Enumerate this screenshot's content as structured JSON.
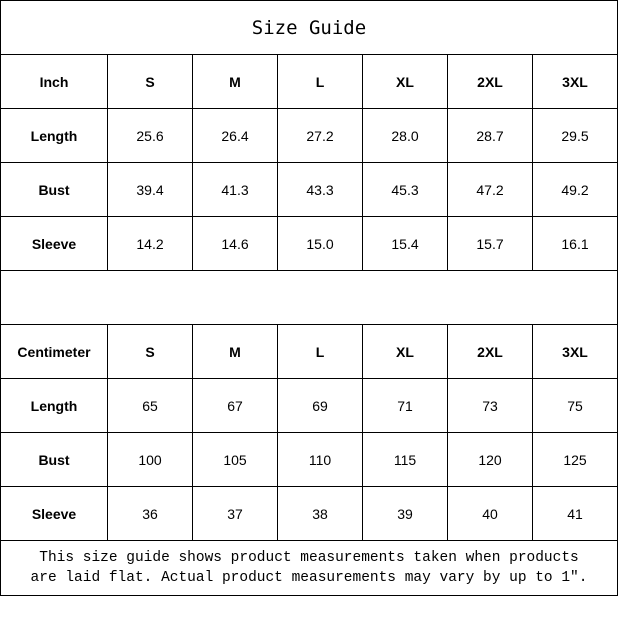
{
  "title": "Size Guide",
  "inch_table": {
    "header": [
      "Inch",
      "S",
      "M",
      "L",
      "XL",
      "2XL",
      "3XL"
    ],
    "rows": [
      {
        "label": "Length",
        "values": [
          "25.6",
          "26.4",
          "27.2",
          "28.0",
          "28.7",
          "29.5"
        ]
      },
      {
        "label": "Bust",
        "values": [
          "39.4",
          "41.3",
          "43.3",
          "45.3",
          "47.2",
          "49.2"
        ]
      },
      {
        "label": "Sleeve",
        "values": [
          "14.2",
          "14.6",
          "15.0",
          "15.4",
          "15.7",
          "16.1"
        ]
      }
    ]
  },
  "cm_table": {
    "header": [
      "Centimeter",
      "S",
      "M",
      "L",
      "XL",
      "2XL",
      "3XL"
    ],
    "rows": [
      {
        "label": "Length",
        "values": [
          "65",
          "67",
          "69",
          "71",
          "73",
          "75"
        ]
      },
      {
        "label": "Bust",
        "values": [
          "100",
          "105",
          "110",
          "115",
          "120",
          "125"
        ]
      },
      {
        "label": "Sleeve",
        "values": [
          "36",
          "37",
          "38",
          "39",
          "40",
          "41"
        ]
      }
    ]
  },
  "note": {
    "line1": "This size guide shows product measurements taken when products",
    "line2": "are laid flat. Actual product measurements may vary by up to 1″."
  }
}
